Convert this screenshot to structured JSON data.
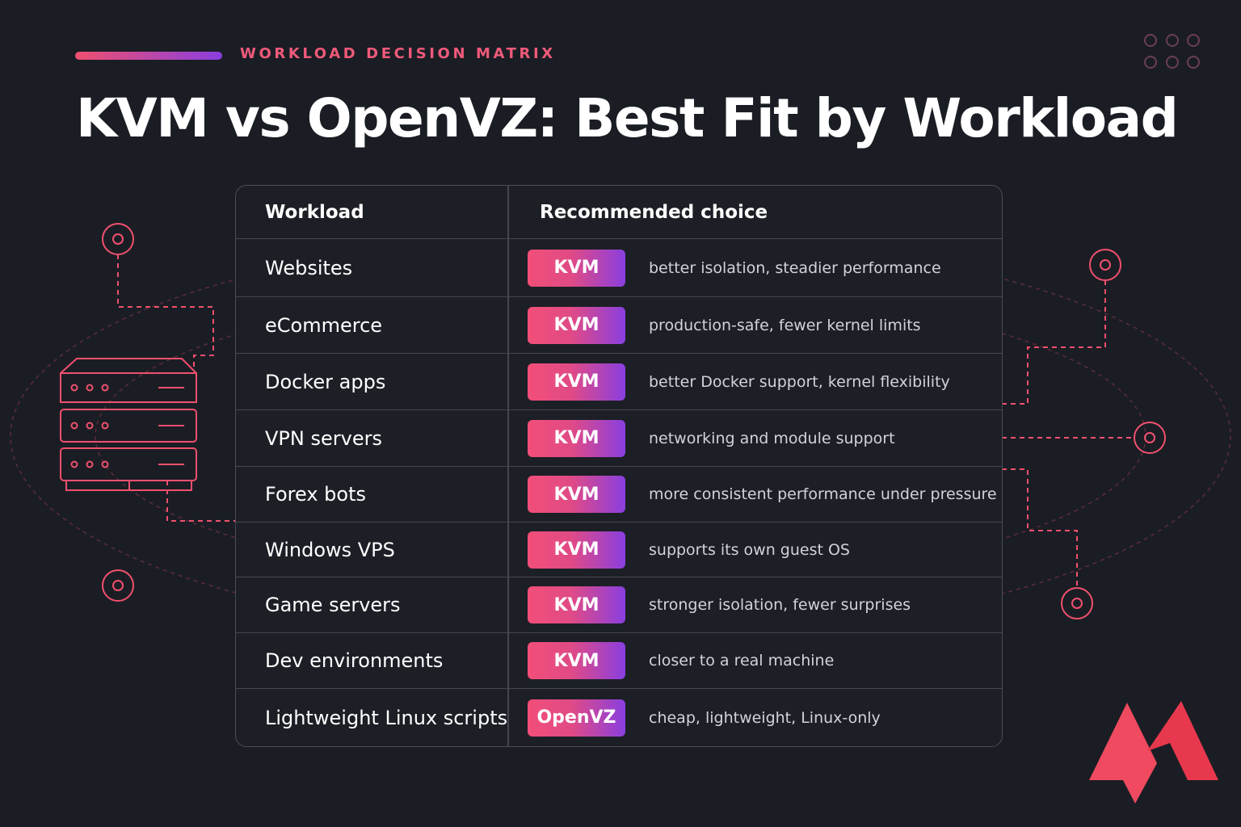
{
  "header": {
    "eyebrow": "WORKLOAD DECISION MATRIX",
    "title": "KVM vs OpenVZ: Best Fit by Workload"
  },
  "table": {
    "columns": [
      "Workload",
      "Recommended choice"
    ],
    "rows": [
      [
        "Websites",
        "KVM",
        "better isolation, steadier performance"
      ],
      [
        "eCommerce",
        "KVM",
        "production-safe, fewer kernel limits"
      ],
      [
        "Docker apps",
        "KVM",
        "better Docker support, kernel flexibility"
      ],
      [
        "VPN servers",
        "KVM",
        "networking and module support"
      ],
      [
        "Forex bots",
        "KVM",
        "more consistent performance under pressure"
      ],
      [
        "Windows VPS",
        "KVM",
        "supports its own guest OS"
      ],
      [
        "Game servers",
        "KVM",
        "stronger isolation, fewer surprises"
      ],
      [
        "Dev environments",
        "KVM",
        "closer to a real machine"
      ],
      [
        "Lightweight Linux scripts",
        "OpenVZ",
        "cheap, lightweight, Linux-only"
      ]
    ]
  }
}
